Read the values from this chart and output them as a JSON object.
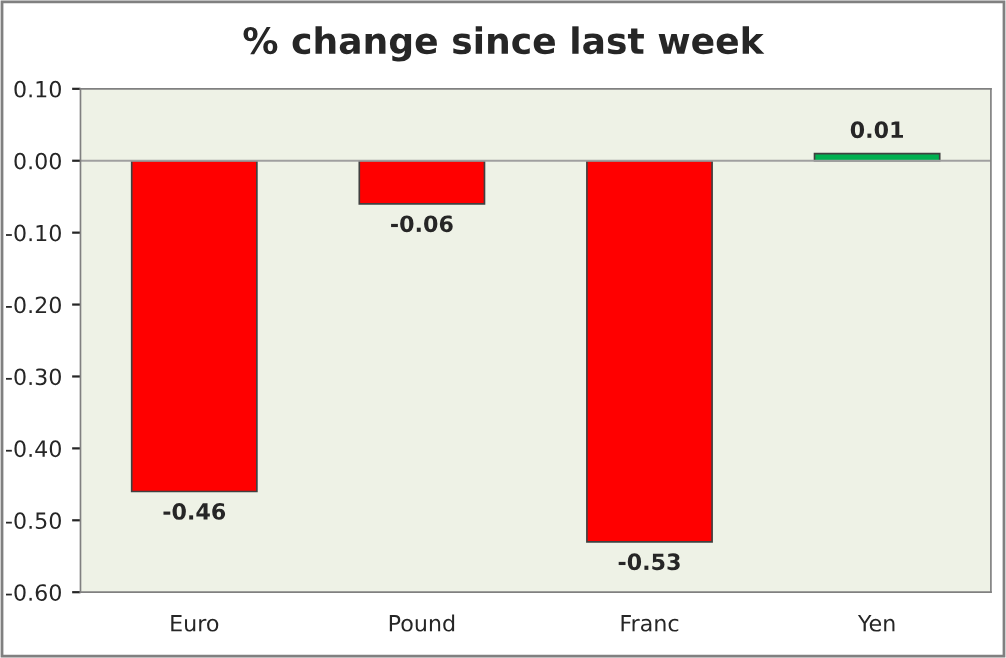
{
  "chart_data": {
    "type": "bar",
    "title": "% change since last week",
    "categories": [
      "Euro",
      "Pound",
      "Franc",
      "Yen"
    ],
    "values": [
      -0.46,
      -0.06,
      -0.53,
      0.01
    ],
    "colors": [
      "#ff0000",
      "#ff0000",
      "#ff0000",
      "#00b050"
    ],
    "value_labels": [
      "-0.46",
      "-0.06",
      "-0.53",
      "0.01"
    ],
    "ylim": [
      -0.6,
      0.1
    ],
    "yticks": [
      {
        "value": 0.1,
        "label": "0.10"
      },
      {
        "value": 0.0,
        "label": "0.00"
      },
      {
        "value": -0.1,
        "label": "-0.10"
      },
      {
        "value": -0.2,
        "label": "-0.20"
      },
      {
        "value": -0.3,
        "label": "-0.30"
      },
      {
        "value": -0.4,
        "label": "-0.40"
      },
      {
        "value": -0.5,
        "label": "-0.50"
      },
      {
        "value": -0.6,
        "label": "-0.60"
      }
    ],
    "ref_lines": [
      {
        "axis": "y",
        "value": 0,
        "color": "#a0a0a0"
      }
    ],
    "grid": false,
    "legend": false
  }
}
